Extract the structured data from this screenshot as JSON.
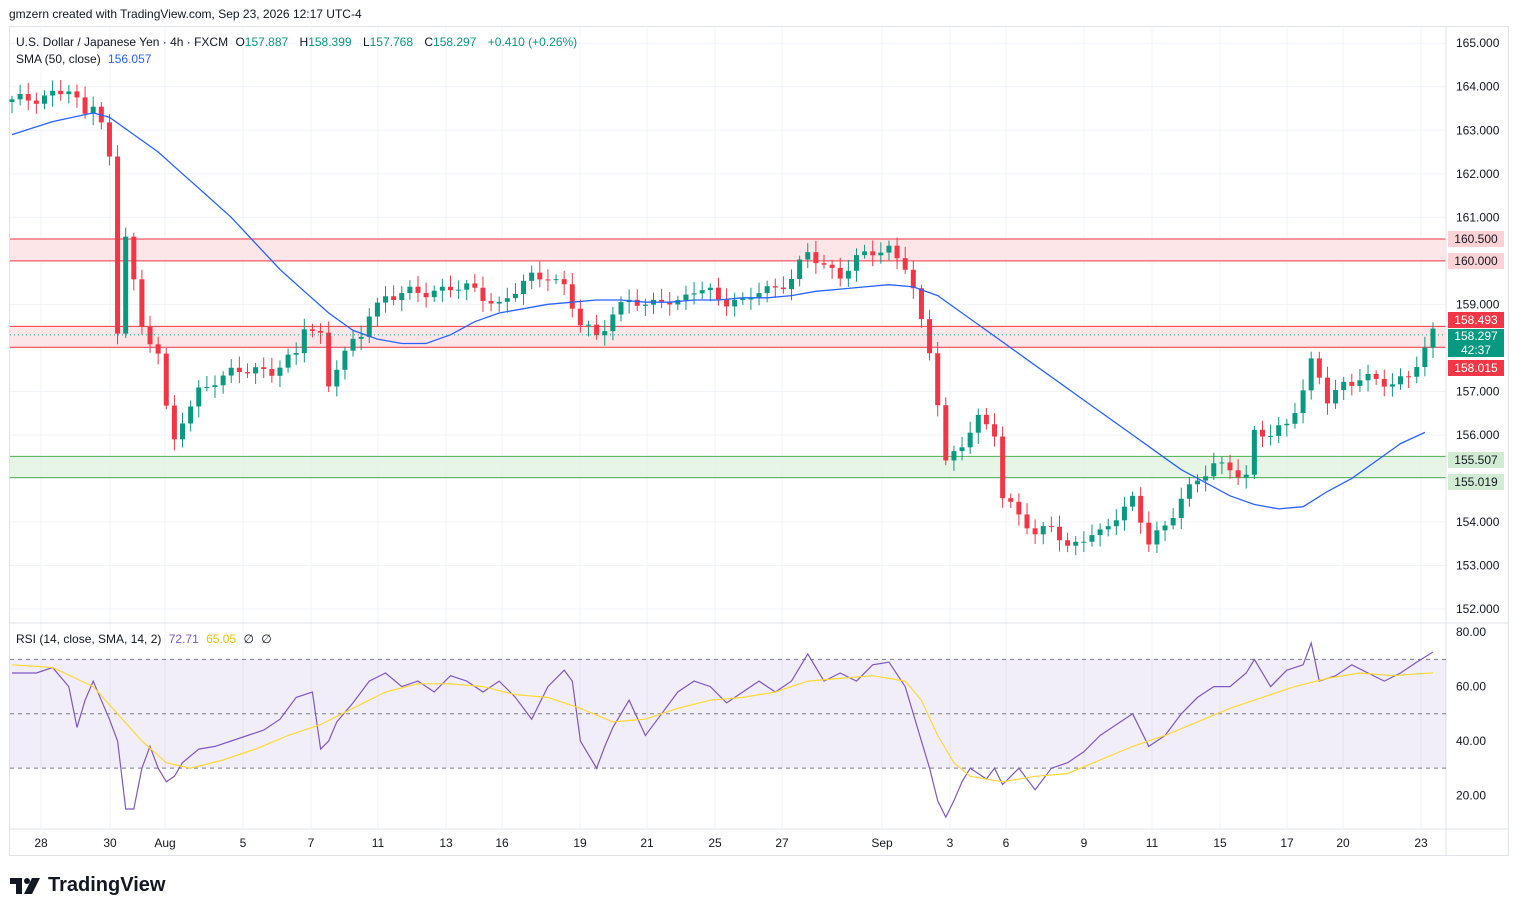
{
  "credit": "gmzern created with TradingView.com, Sep 23, 2026 12:17 UTC-4",
  "legend": {
    "symbol": "U.S. Dollar / Japanese Yen · 4h · FXCM",
    "o_label": "O",
    "o": "157.887",
    "h_label": "H",
    "h": "158.399",
    "l_label": "L",
    "l": "157.768",
    "c_label": "C",
    "c": "158.297",
    "change": "+0.410 (+0.26%)",
    "sma_label": "SMA (50, close)",
    "sma_value": "156.057",
    "rsi_label": "RSI (14, close, SMA, 14, 2)",
    "rsi_value": "72.71",
    "rsi_sma": "65.05",
    "rsi_extra1": "∅",
    "rsi_extra2": "∅"
  },
  "price_labels": {
    "r_top": "160.500",
    "r_bottom": "160.000",
    "zone_top": "158.493",
    "last_price": "158.297",
    "countdown": "42:37",
    "zone_bottom": "158.015",
    "s_top": "155.507",
    "s_bottom": "155.019"
  },
  "brand": "TradingView",
  "colors": {
    "up": "#089981",
    "down": "#f23645",
    "sma": "#2962ff",
    "rsi": "#7e57c2",
    "rsi_ma": "#fdd835",
    "resistance_fill": "#fde2e4",
    "support_fill": "#e2f3e2"
  },
  "chart_data": {
    "type": "candlestick",
    "price_axis": {
      "ticks": [
        "152.000",
        "153.000",
        "154.000",
        "155.000",
        "156.000",
        "157.000",
        "158.000",
        "159.000",
        "160.000",
        "161.000",
        "162.000",
        "163.000",
        "164.000",
        "165.000"
      ],
      "ylim": [
        151.7,
        165.35
      ]
    },
    "time_axis": {
      "ticks": [
        "28",
        "30",
        "Aug",
        "5",
        "7",
        "11",
        "13",
        "16",
        "19",
        "21",
        "25",
        "27",
        "Sep",
        "3",
        "6",
        "9",
        "11",
        "15",
        "17",
        "20",
        "23"
      ]
    },
    "zones": [
      {
        "kind": "resistance",
        "from": 160.0,
        "to": 160.5
      },
      {
        "kind": "resistance",
        "from": 158.015,
        "to": 158.493
      },
      {
        "kind": "support",
        "from": 155.019,
        "to": 155.507
      }
    ],
    "price_path": [
      [
        0,
        163.65
      ],
      [
        4,
        163.8
      ],
      [
        7,
        163.9
      ],
      [
        9,
        163.35
      ],
      [
        10,
        163.7
      ],
      [
        11,
        163.25
      ],
      [
        12,
        162.3
      ],
      [
        13,
        158.3
      ],
      [
        14,
        160.6
      ],
      [
        16,
        158.4
      ],
      [
        18,
        158.0
      ],
      [
        19,
        156.6
      ],
      [
        20,
        155.8
      ],
      [
        21,
        156.3
      ],
      [
        23,
        157.0
      ],
      [
        25,
        157.3
      ],
      [
        27,
        157.4
      ],
      [
        30,
        157.5
      ],
      [
        32,
        157.5
      ],
      [
        35,
        157.8
      ],
      [
        36,
        158.5
      ],
      [
        38,
        158.3
      ],
      [
        39,
        157.2
      ],
      [
        40,
        157.6
      ],
      [
        43,
        158.3
      ],
      [
        44,
        158.8
      ],
      [
        46,
        159.2
      ],
      [
        50,
        159.25
      ],
      [
        54,
        159.4
      ],
      [
        57,
        159.3
      ],
      [
        60,
        159.0
      ],
      [
        62,
        159.3
      ],
      [
        64,
        159.6
      ],
      [
        66,
        159.7
      ],
      [
        68,
        159.4
      ],
      [
        70,
        158.5
      ],
      [
        72,
        158.3
      ],
      [
        74,
        158.8
      ],
      [
        76,
        159.1
      ],
      [
        78,
        158.9
      ],
      [
        80,
        159.2
      ],
      [
        82,
        159.0
      ],
      [
        84,
        159.3
      ],
      [
        86,
        159.3
      ],
      [
        88,
        159.1
      ],
      [
        90,
        159.0
      ],
      [
        92,
        159.3
      ],
      [
        94,
        159.4
      ],
      [
        96,
        159.6
      ],
      [
        98,
        160.15
      ],
      [
        100,
        159.9
      ],
      [
        102,
        159.7
      ],
      [
        104,
        160.0
      ],
      [
        106,
        160.2
      ],
      [
        108,
        160.3
      ],
      [
        110,
        159.9
      ],
      [
        111,
        159.3
      ],
      [
        112,
        158.5
      ],
      [
        113,
        157.9
      ],
      [
        114,
        156.8
      ],
      [
        115,
        155.4
      ],
      [
        117,
        155.8
      ],
      [
        119,
        156.3
      ],
      [
        121,
        156.1
      ],
      [
        122,
        154.6
      ],
      [
        124,
        154.2
      ],
      [
        126,
        153.6
      ],
      [
        128,
        154.0
      ],
      [
        130,
        153.4
      ],
      [
        132,
        153.6
      ],
      [
        134,
        153.7
      ],
      [
        136,
        154.2
      ],
      [
        138,
        154.5
      ],
      [
        140,
        153.5
      ],
      [
        142,
        153.9
      ],
      [
        144,
        154.6
      ],
      [
        146,
        154.9
      ],
      [
        148,
        155.3
      ],
      [
        150,
        155.3
      ],
      [
        152,
        155.0
      ],
      [
        153,
        156.0
      ],
      [
        155,
        156.0
      ],
      [
        157,
        156.3
      ],
      [
        159,
        157.0
      ],
      [
        160,
        157.6
      ],
      [
        161,
        157.3
      ],
      [
        162,
        156.8
      ],
      [
        164,
        157.2
      ],
      [
        166,
        157.3
      ],
      [
        168,
        157.2
      ],
      [
        170,
        157.2
      ],
      [
        172,
        157.4
      ],
      [
        174,
        157.9
      ],
      [
        175,
        158.3
      ]
    ],
    "sma_path": [
      [
        0,
        162.9
      ],
      [
        5,
        163.2
      ],
      [
        10,
        163.4
      ],
      [
        12,
        163.3
      ],
      [
        15,
        162.9
      ],
      [
        18,
        162.5
      ],
      [
        21,
        162.0
      ],
      [
        24,
        161.5
      ],
      [
        27,
        161.0
      ],
      [
        30,
        160.4
      ],
      [
        33,
        159.8
      ],
      [
        36,
        159.3
      ],
      [
        39,
        158.8
      ],
      [
        42,
        158.4
      ],
      [
        45,
        158.2
      ],
      [
        48,
        158.1
      ],
      [
        51,
        158.1
      ],
      [
        54,
        158.3
      ],
      [
        57,
        158.6
      ],
      [
        60,
        158.8
      ],
      [
        63,
        158.9
      ],
      [
        66,
        159.0
      ],
      [
        69,
        159.05
      ],
      [
        72,
        159.1
      ],
      [
        75,
        159.1
      ],
      [
        78,
        159.05
      ],
      [
        81,
        159.05
      ],
      [
        84,
        159.1
      ],
      [
        87,
        159.1
      ],
      [
        90,
        159.15
      ],
      [
        93,
        159.15
      ],
      [
        96,
        159.2
      ],
      [
        99,
        159.3
      ],
      [
        102,
        159.35
      ],
      [
        105,
        159.4
      ],
      [
        108,
        159.45
      ],
      [
        111,
        159.4
      ],
      [
        114,
        159.2
      ],
      [
        117,
        158.8
      ],
      [
        120,
        158.4
      ],
      [
        123,
        158.0
      ],
      [
        126,
        157.6
      ],
      [
        129,
        157.2
      ],
      [
        132,
        156.8
      ],
      [
        135,
        156.4
      ],
      [
        138,
        156.0
      ],
      [
        141,
        155.6
      ],
      [
        144,
        155.2
      ],
      [
        147,
        154.9
      ],
      [
        150,
        154.6
      ],
      [
        153,
        154.4
      ],
      [
        156,
        154.3
      ],
      [
        159,
        154.35
      ],
      [
        162,
        154.7
      ],
      [
        165,
        155.0
      ],
      [
        168,
        155.4
      ],
      [
        171,
        155.8
      ],
      [
        174,
        156.057
      ]
    ],
    "rsi": {
      "levels": [
        70,
        50,
        30
      ],
      "axis_ticks": [
        "20.00",
        "40.00",
        "60.00",
        "80.00"
      ],
      "ylim": [
        8,
        83
      ],
      "line": [
        [
          0,
          65
        ],
        [
          3,
          65
        ],
        [
          5,
          67
        ],
        [
          7,
          60
        ],
        [
          8,
          45
        ],
        [
          9,
          55
        ],
        [
          10,
          62
        ],
        [
          11,
          55
        ],
        [
          12,
          48
        ],
        [
          13,
          40
        ],
        [
          14,
          15
        ],
        [
          15,
          15
        ],
        [
          16,
          30
        ],
        [
          17,
          38
        ],
        [
          18,
          30
        ],
        [
          19,
          25
        ],
        [
          20,
          27
        ],
        [
          21,
          32
        ],
        [
          23,
          37
        ],
        [
          25,
          38
        ],
        [
          27,
          40
        ],
        [
          29,
          42
        ],
        [
          31,
          44
        ],
        [
          33,
          48
        ],
        [
          35,
          56
        ],
        [
          37,
          58
        ],
        [
          38,
          37
        ],
        [
          39,
          40
        ],
        [
          40,
          47
        ],
        [
          42,
          54
        ],
        [
          44,
          62
        ],
        [
          46,
          65
        ],
        [
          48,
          60
        ],
        [
          50,
          62
        ],
        [
          52,
          58
        ],
        [
          54,
          64
        ],
        [
          56,
          62
        ],
        [
          58,
          58
        ],
        [
          60,
          62
        ],
        [
          62,
          56
        ],
        [
          64,
          48
        ],
        [
          66,
          60
        ],
        [
          68,
          66
        ],
        [
          69,
          62
        ],
        [
          70,
          40
        ],
        [
          72,
          30
        ],
        [
          73,
          38
        ],
        [
          74,
          45
        ],
        [
          76,
          55
        ],
        [
          78,
          42
        ],
        [
          80,
          50
        ],
        [
          82,
          58
        ],
        [
          84,
          62
        ],
        [
          86,
          60
        ],
        [
          88,
          54
        ],
        [
          90,
          58
        ],
        [
          92,
          62
        ],
        [
          94,
          58
        ],
        [
          96,
          62
        ],
        [
          98,
          72
        ],
        [
          100,
          62
        ],
        [
          102,
          65
        ],
        [
          104,
          62
        ],
        [
          106,
          68
        ],
        [
          108,
          69
        ],
        [
          110,
          60
        ],
        [
          111,
          50
        ],
        [
          112,
          40
        ],
        [
          113,
          30
        ],
        [
          114,
          18
        ],
        [
          115,
          12
        ],
        [
          116,
          18
        ],
        [
          117,
          25
        ],
        [
          118,
          30
        ],
        [
          119,
          28
        ],
        [
          120,
          26
        ],
        [
          121,
          30
        ],
        [
          122,
          24
        ],
        [
          124,
          30
        ],
        [
          126,
          22
        ],
        [
          128,
          30
        ],
        [
          130,
          32
        ],
        [
          132,
          36
        ],
        [
          134,
          42
        ],
        [
          136,
          46
        ],
        [
          138,
          50
        ],
        [
          140,
          38
        ],
        [
          142,
          42
        ],
        [
          144,
          50
        ],
        [
          146,
          56
        ],
        [
          148,
          60
        ],
        [
          150,
          60
        ],
        [
          152,
          65
        ],
        [
          153,
          70
        ],
        [
          155,
          60
        ],
        [
          157,
          66
        ],
        [
          159,
          68
        ],
        [
          160,
          76
        ],
        [
          161,
          62
        ],
        [
          163,
          64
        ],
        [
          165,
          68
        ],
        [
          167,
          65
        ],
        [
          169,
          62
        ],
        [
          171,
          65
        ],
        [
          173,
          69
        ],
        [
          175,
          72.71
        ]
      ],
      "ma": [
        [
          0,
          68
        ],
        [
          5,
          67
        ],
        [
          10,
          60
        ],
        [
          13,
          50
        ],
        [
          16,
          40
        ],
        [
          19,
          32
        ],
        [
          22,
          30
        ],
        [
          26,
          33
        ],
        [
          30,
          37
        ],
        [
          34,
          42
        ],
        [
          38,
          46
        ],
        [
          42,
          52
        ],
        [
          46,
          58
        ],
        [
          50,
          61
        ],
        [
          54,
          61
        ],
        [
          58,
          60
        ],
        [
          62,
          57
        ],
        [
          66,
          56
        ],
        [
          70,
          52
        ],
        [
          74,
          47
        ],
        [
          78,
          48
        ],
        [
          82,
          52
        ],
        [
          86,
          55
        ],
        [
          90,
          56
        ],
        [
          94,
          58
        ],
        [
          98,
          62
        ],
        [
          102,
          63
        ],
        [
          106,
          64
        ],
        [
          110,
          62
        ],
        [
          112,
          55
        ],
        [
          114,
          42
        ],
        [
          116,
          32
        ],
        [
          118,
          27
        ],
        [
          122,
          25
        ],
        [
          126,
          27
        ],
        [
          130,
          28
        ],
        [
          134,
          33
        ],
        [
          138,
          38
        ],
        [
          142,
          42
        ],
        [
          146,
          47
        ],
        [
          150,
          52
        ],
        [
          154,
          56
        ],
        [
          158,
          60
        ],
        [
          162,
          63
        ],
        [
          166,
          65
        ],
        [
          170,
          64
        ],
        [
          175,
          65.05
        ]
      ]
    }
  }
}
